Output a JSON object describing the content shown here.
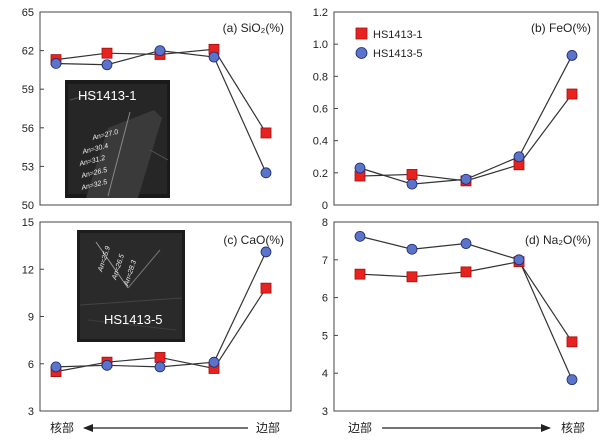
{
  "chart_data": [
    {
      "type": "line",
      "title": "(a) SiO₂(%)",
      "ylim": [
        50,
        65
      ],
      "yticks": [
        "50",
        "53",
        "56",
        "59",
        "62",
        "65"
      ],
      "x": [
        1,
        2,
        3,
        4,
        5
      ],
      "series": [
        {
          "name": "HS1413-1",
          "values": [
            61.3,
            61.8,
            61.7,
            62.1,
            55.6
          ]
        },
        {
          "name": "HS1413-5",
          "values": [
            61.0,
            60.9,
            62.0,
            61.5,
            52.5
          ]
        }
      ]
    },
    {
      "type": "line",
      "title": "(b) FeO(%)",
      "ylim": [
        0,
        1.2
      ],
      "yticks": [
        "0",
        "0.2",
        "0.4",
        "0.6",
        "0.8",
        "1.0",
        "1.2"
      ],
      "x": [
        1,
        2,
        3,
        4,
        5
      ],
      "series": [
        {
          "name": "HS1413-1",
          "values": [
            0.18,
            0.19,
            0.15,
            0.25,
            0.69
          ]
        },
        {
          "name": "HS1413-5",
          "values": [
            0.23,
            0.13,
            0.16,
            0.3,
            0.93
          ]
        }
      ]
    },
    {
      "type": "line",
      "title": "(c) CaO(%)",
      "ylim": [
        3,
        15
      ],
      "yticks": [
        "3",
        "6",
        "9",
        "12",
        "15"
      ],
      "x": [
        1,
        2,
        3,
        4,
        5
      ],
      "series": [
        {
          "name": "HS1413-1",
          "values": [
            5.5,
            6.1,
            6.4,
            5.7,
            10.8
          ]
        },
        {
          "name": "HS1413-5",
          "values": [
            5.8,
            5.9,
            5.8,
            6.1,
            13.1
          ]
        }
      ]
    },
    {
      "type": "line",
      "title": "(d) Na₂O(%)",
      "ylim": [
        3,
        8
      ],
      "yticks": [
        "3",
        "4",
        "5",
        "6",
        "7",
        "8"
      ],
      "x": [
        1,
        2,
        3,
        4,
        5
      ],
      "series": [
        {
          "name": "HS1413-1",
          "values": [
            6.62,
            6.55,
            6.68,
            6.95,
            4.83
          ]
        },
        {
          "name": "HS1413-5",
          "values": [
            7.62,
            7.28,
            7.43,
            7.0,
            3.83
          ]
        }
      ]
    }
  ],
  "legend": {
    "placement": "top-left of panel (b)",
    "items": [
      "HS1413-1",
      "HS1413-5"
    ]
  },
  "x_axis_labels": {
    "left": {
      "start": "核部",
      "end": "边部"
    },
    "right": {
      "start": "边部",
      "end": "核部"
    }
  },
  "insets": {
    "a": {
      "label": "HS1413-1",
      "annotations": [
        "An=27.0",
        "An=30.4",
        "An=31.2",
        "An=26.5",
        "An=32.5"
      ]
    },
    "c": {
      "label": "HS1413-5",
      "annotations": [
        "An=25.9",
        "An=26.5",
        "An=28.3"
      ]
    }
  },
  "colors": {
    "series1_fill": "#e8231f",
    "series1_stroke": "#a01010",
    "series2_fill": "#5b73c8",
    "series2_stroke": "#1a2a70",
    "line": "#333333"
  }
}
